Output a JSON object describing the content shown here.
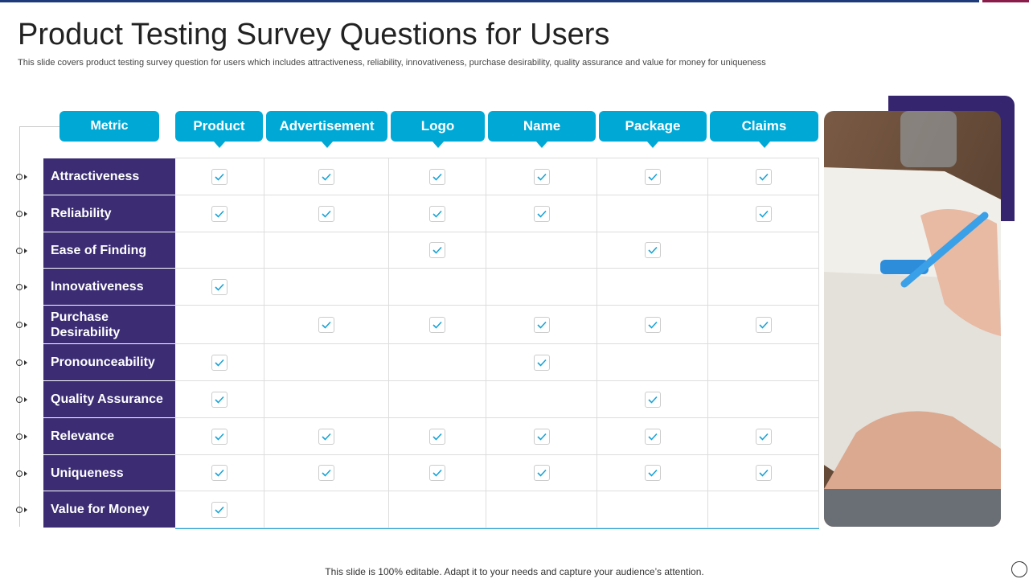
{
  "header": {
    "title": "Product Testing Survey Questions for Users",
    "subtitle": "This slide covers product testing survey question for users which includes attractiveness, reliability, innovativeness, purchase desirability, quality assurance and value for money for uniqueness"
  },
  "table": {
    "columns": [
      "Metric",
      "Product",
      "Advertisement",
      "Logo",
      "Name",
      "Package",
      "Claims"
    ],
    "rows": [
      {
        "metric": "Attractiveness",
        "checks": [
          true,
          true,
          true,
          true,
          true,
          true
        ]
      },
      {
        "metric": "Reliability",
        "checks": [
          true,
          true,
          true,
          true,
          false,
          true
        ]
      },
      {
        "metric": "Ease of Finding",
        "checks": [
          false,
          false,
          true,
          false,
          true,
          false
        ]
      },
      {
        "metric": "Innovativeness",
        "checks": [
          true,
          false,
          false,
          false,
          false,
          false
        ]
      },
      {
        "metric": "Purchase Desirability",
        "checks": [
          false,
          true,
          true,
          true,
          true,
          true
        ]
      },
      {
        "metric": "Pronounceability",
        "checks": [
          true,
          false,
          false,
          true,
          false,
          false
        ]
      },
      {
        "metric": "Quality Assurance",
        "checks": [
          true,
          false,
          false,
          false,
          true,
          false
        ]
      },
      {
        "metric": "Relevance",
        "checks": [
          true,
          true,
          true,
          true,
          true,
          true
        ]
      },
      {
        "metric": "Uniqueness",
        "checks": [
          true,
          true,
          true,
          true,
          true,
          true
        ]
      },
      {
        "metric": "Value for Money",
        "checks": [
          true,
          false,
          false,
          false,
          false,
          false
        ]
      }
    ]
  },
  "footer": {
    "note": "This slide is 100% editable. Adapt it to your needs and capture your audience’s attention."
  }
}
